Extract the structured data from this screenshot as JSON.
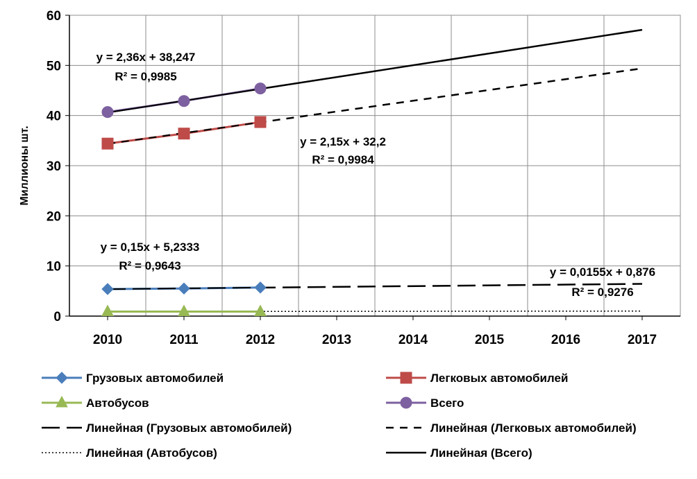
{
  "chart_data": {
    "type": "line",
    "title": "",
    "xlabel": "",
    "ylabel": "Миллионы шт.",
    "x": [
      2010,
      2011,
      2012,
      2013,
      2014,
      2015,
      2016,
      2017
    ],
    "x_tick_labels": [
      "2010",
      "2011",
      "2012",
      "2013",
      "2014",
      "2015",
      "2016",
      "2017"
    ],
    "ylim": [
      0,
      60
    ],
    "y_tick_labels": [
      "0",
      "10",
      "20",
      "30",
      "40",
      "50",
      "60"
    ],
    "grid": true,
    "legend_position": "bottom",
    "series": [
      {
        "name": "Грузовых автомобилей",
        "x": [
          2010,
          2011,
          2012
        ],
        "values": [
          5.4,
          5.5,
          5.7
        ],
        "color": "#4a7ebb",
        "marker": "diamond"
      },
      {
        "name": "Легковых автомобилей",
        "x": [
          2010,
          2011,
          2012
        ],
        "values": [
          34.4,
          36.4,
          38.7
        ],
        "color": "#be4b48",
        "marker": "square"
      },
      {
        "name": "Автобусов",
        "x": [
          2010,
          2011,
          2012
        ],
        "values": [
          0.9,
          0.9,
          0.9
        ],
        "color": "#98b954",
        "marker": "triangle"
      },
      {
        "name": "Всего",
        "x": [
          2010,
          2011,
          2012
        ],
        "values": [
          40.7,
          42.9,
          45.4
        ],
        "color": "#7d60a0",
        "marker": "circle"
      }
    ],
    "trendlines": [
      {
        "name": "Линейная (Грузовых автомобилей)",
        "x": [
          2010,
          2017
        ],
        "values": [
          5.38,
          6.43
        ],
        "style": "long-dash",
        "color": "#000000"
      },
      {
        "name": "Линейная (Легковых автомобилей)",
        "x": [
          2010,
          2017
        ],
        "values": [
          34.35,
          49.4
        ],
        "style": "dash",
        "color": "#000000"
      },
      {
        "name": "Линейная (Автобусов)",
        "x": [
          2010,
          2017
        ],
        "values": [
          0.9,
          1.0
        ],
        "style": "dot",
        "color": "#000000"
      },
      {
        "name": "Линейная (Всего)",
        "x": [
          2010,
          2017
        ],
        "values": [
          40.6,
          57.1
        ],
        "style": "solid",
        "color": "#000000"
      }
    ],
    "annotations": [
      {
        "line1": "y = 2,36x + 38,247",
        "line2": "R² = 0,9985"
      },
      {
        "line1": "y = 2,15x + 32,2",
        "line2": "R² = 0,9984"
      },
      {
        "line1": "y = 0,15x + 5,2333",
        "line2": "R² = 0,9643"
      },
      {
        "line1": "y = 0,0155x + 0,876",
        "line2": "R² = 0,9276"
      }
    ]
  },
  "legend": [
    {
      "label": "Грузовых автомобилей",
      "kind": "series",
      "color": "#4a7ebb",
      "marker": "diamond"
    },
    {
      "label": "Легковых автомобилей",
      "kind": "series",
      "color": "#be4b48",
      "marker": "square"
    },
    {
      "label": "Автобусов",
      "kind": "series",
      "color": "#98b954",
      "marker": "triangle"
    },
    {
      "label": "Всего",
      "kind": "series",
      "color": "#7d60a0",
      "marker": "circle"
    },
    {
      "label": "Линейная (Грузовых автомобилей)",
      "kind": "trend",
      "style": "long-dash"
    },
    {
      "label": "Линейная (Легковых автомобилей)",
      "kind": "trend",
      "style": "dash"
    },
    {
      "label": "Линейная (Автобусов)",
      "kind": "trend",
      "style": "dot"
    },
    {
      "label": "Линейная (Всего)",
      "kind": "trend",
      "style": "solid"
    }
  ]
}
